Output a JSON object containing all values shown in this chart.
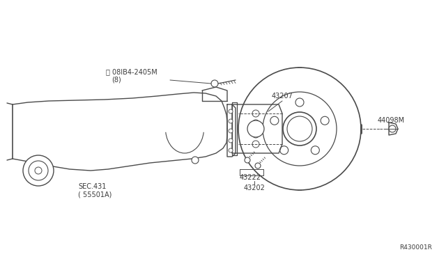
{
  "bg_color": "#ffffff",
  "line_color": "#4a4a4a",
  "text_color": "#3a3a3a",
  "fig_width": 6.4,
  "fig_height": 3.72,
  "dpi": 100,
  "labels": {
    "bolt_label": "Ⓑ 08IB4-2405M",
    "bolt_sub": "(8)",
    "sec_label": "SEC.431",
    "sec_sub": "( 55501A)",
    "part_43207": "43207",
    "part_44098m": "44098M",
    "part_43222": "43222",
    "part_43202": "43202",
    "ref_code": "R430001R"
  }
}
